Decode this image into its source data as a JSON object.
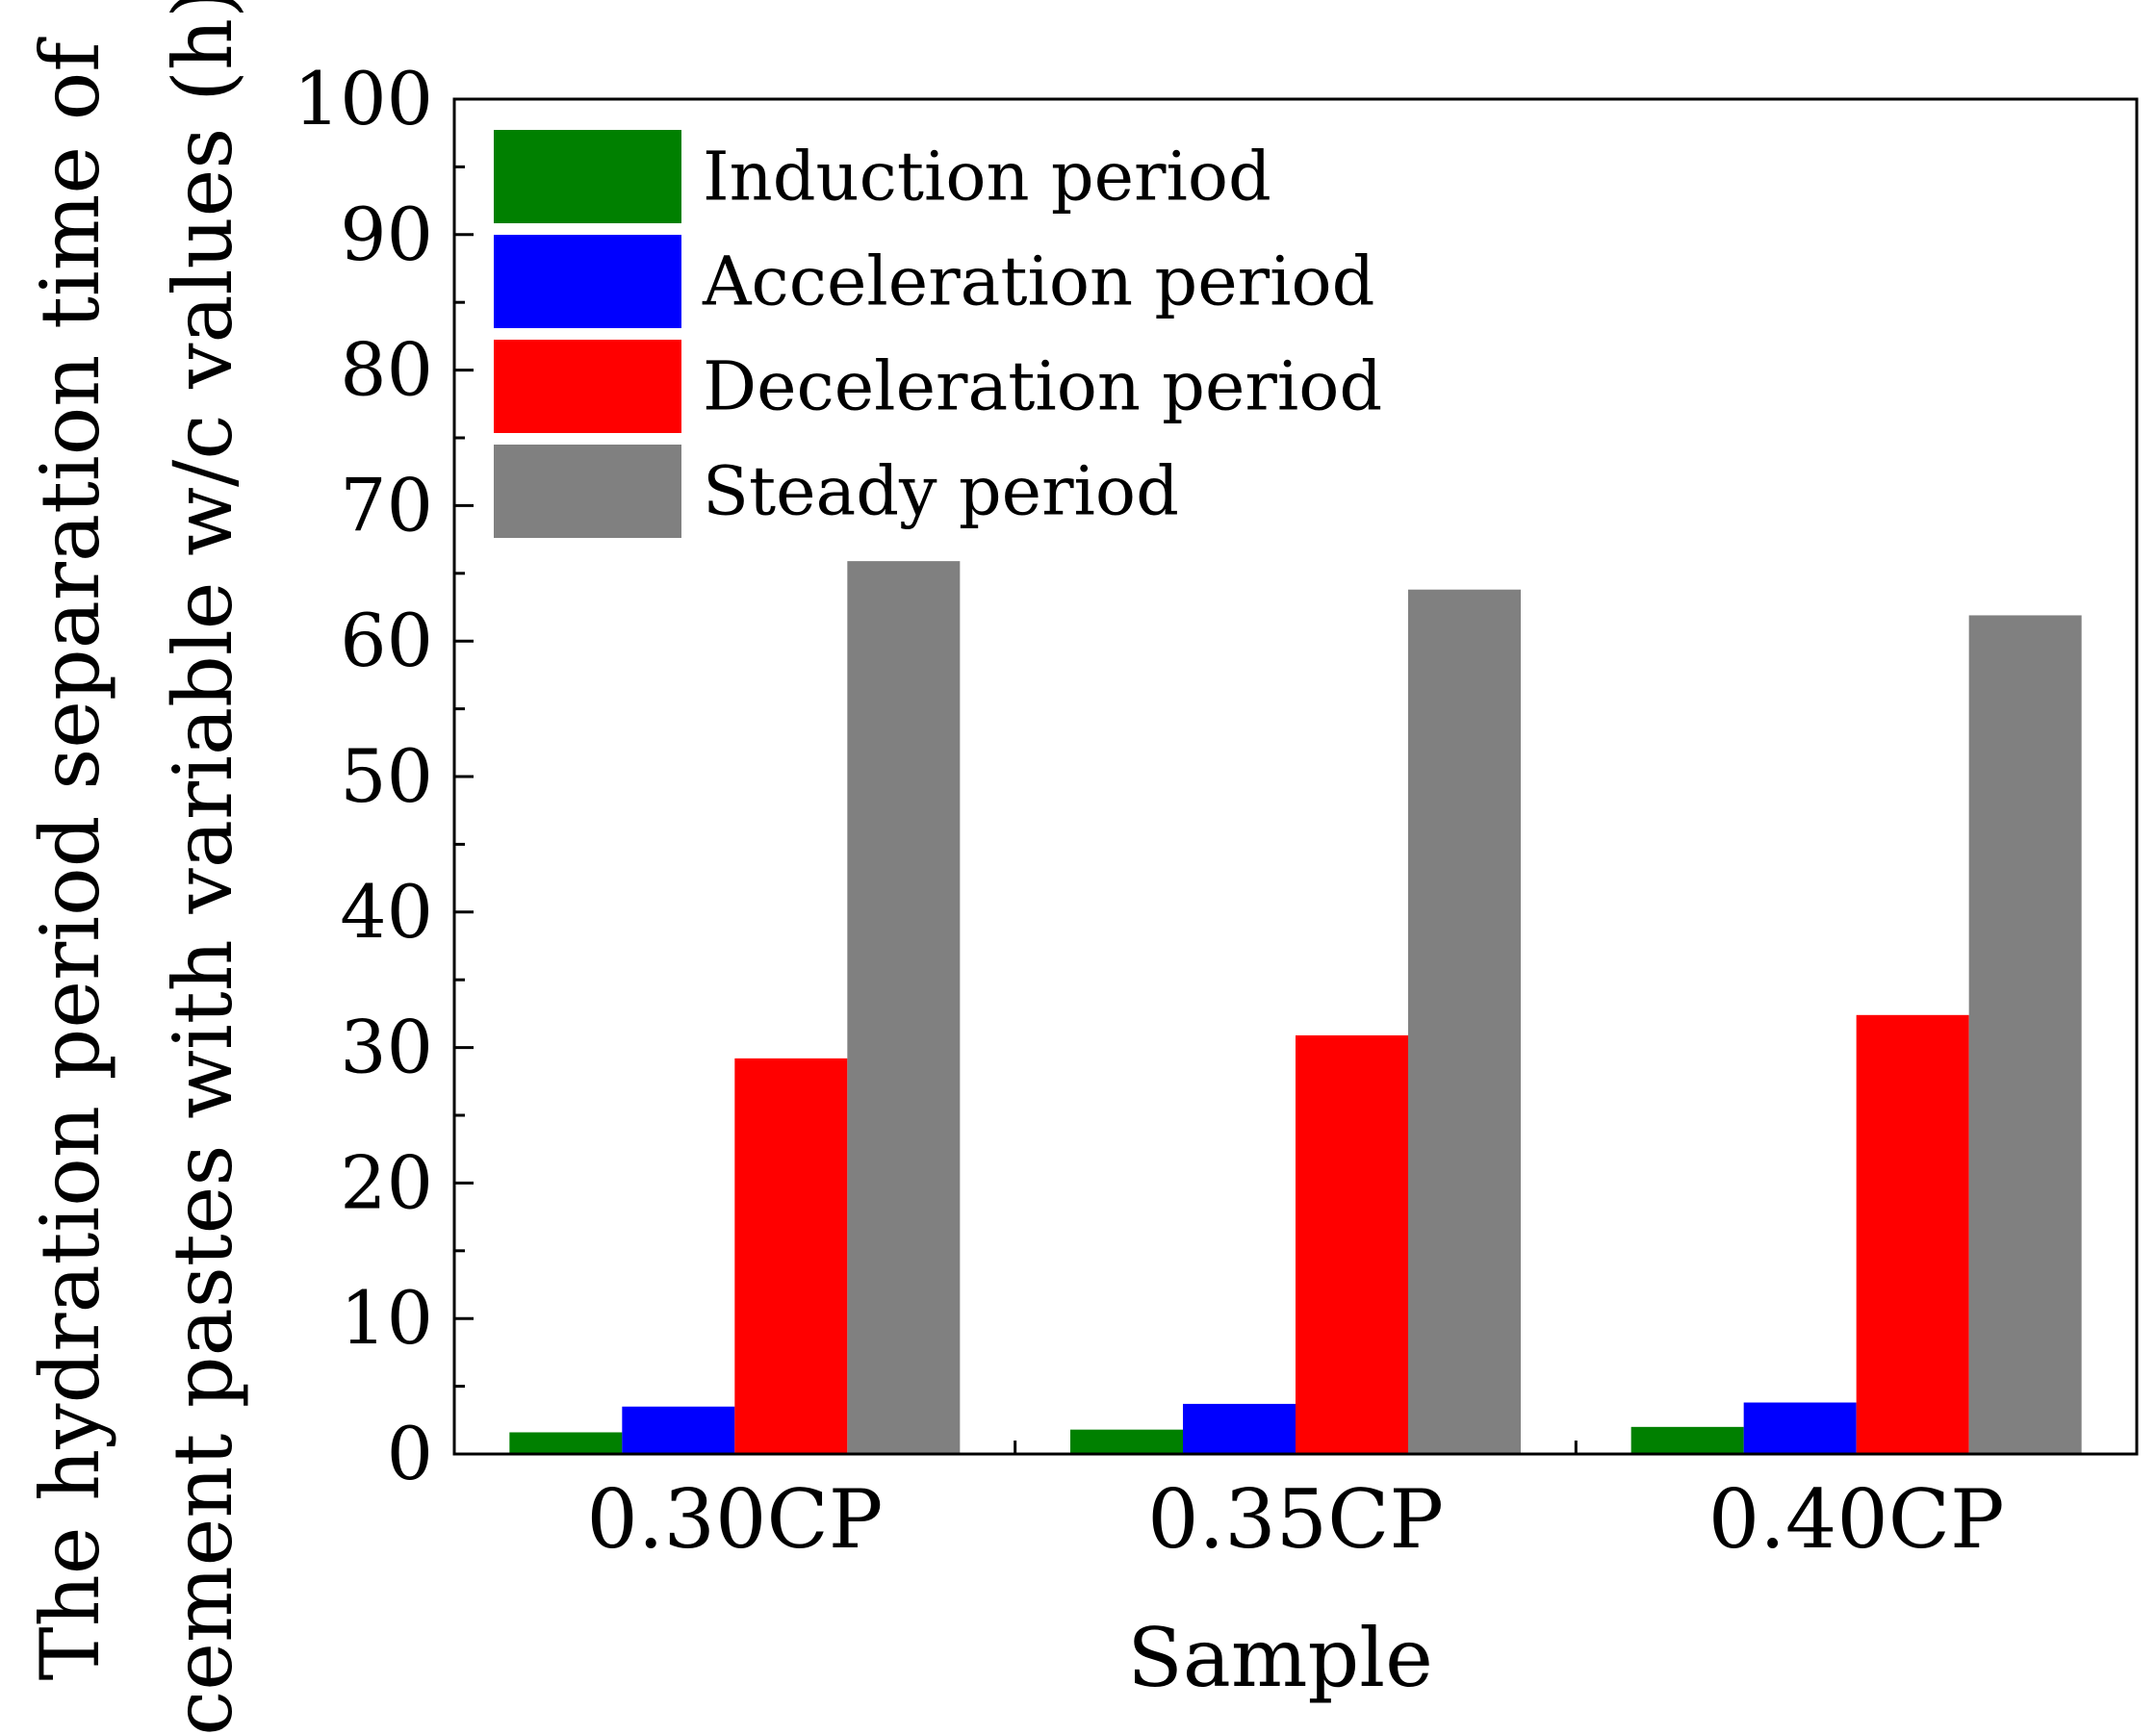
{
  "chart_data": {
    "type": "bar",
    "title": "",
    "xlabel": "Sample",
    "ylabel": [
      "The hydration period separation time of",
      "cement pastes with variable w/c values (h)"
    ],
    "categories": [
      "0.30CP",
      "0.35CP",
      "0.40CP"
    ],
    "ylim": [
      0,
      100
    ],
    "yticks": [
      0,
      10,
      20,
      30,
      40,
      50,
      60,
      70,
      80,
      90,
      100
    ],
    "grid": false,
    "legend_position": "top-left",
    "series": [
      {
        "name": "Induction period",
        "color": "#008000",
        "values": [
          1.6,
          1.8,
          2.0
        ]
      },
      {
        "name": "Acceleration period",
        "color": "#0000ff",
        "values": [
          3.5,
          3.7,
          3.8
        ]
      },
      {
        "name": "Deceleration period",
        "color": "#ff0000",
        "values": [
          29.2,
          30.9,
          32.4
        ]
      },
      {
        "name": "Steady period",
        "color": "#808080",
        "values": [
          65.9,
          63.8,
          61.9
        ]
      }
    ]
  }
}
